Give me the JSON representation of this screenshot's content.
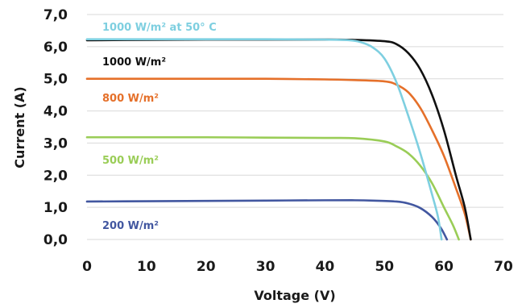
{
  "chart_data": {
    "type": "line",
    "title": "",
    "xlabel": "Voltage (V)",
    "ylabel": "Current (A)",
    "xlim": [
      0,
      70
    ],
    "ylim": [
      0,
      7
    ],
    "xticks": [
      "0",
      "10",
      "20",
      "30",
      "40",
      "50",
      "60",
      "70"
    ],
    "yticks": [
      "0,0",
      "1,0",
      "2,0",
      "3,0",
      "4,0",
      "5,0",
      "6,0",
      "7,0"
    ],
    "grid": "horizontal",
    "legend": "inline-labels",
    "series": [
      {
        "name": "1000 W/m² at 50° C",
        "color": "#7ecfe0",
        "x": [
          0,
          10,
          20,
          30,
          40,
          44,
          46,
          48,
          50,
          52,
          54,
          56,
          58,
          59,
          59.6
        ],
        "y": [
          6.23,
          6.23,
          6.23,
          6.23,
          6.22,
          6.2,
          6.14,
          5.98,
          5.63,
          4.9,
          3.85,
          2.7,
          1.4,
          0.7,
          0
        ]
      },
      {
        "name": "1000 W/m²",
        "color": "#111111",
        "x": [
          0,
          10,
          20,
          30,
          40,
          45,
          50,
          52,
          54,
          56,
          58,
          60,
          62,
          63.5,
          64.5
        ],
        "y": [
          6.2,
          6.21,
          6.22,
          6.22,
          6.22,
          6.21,
          6.17,
          6.08,
          5.8,
          5.3,
          4.5,
          3.4,
          2.0,
          1.0,
          0
        ]
      },
      {
        "name": "800 W/m²",
        "color": "#e5702a",
        "x": [
          0,
          10,
          20,
          30,
          40,
          45,
          50,
          52,
          54,
          56,
          58,
          60,
          62,
          63.5,
          64.5
        ],
        "y": [
          5.0,
          5.0,
          5.0,
          5.0,
          4.98,
          4.96,
          4.92,
          4.82,
          4.58,
          4.1,
          3.4,
          2.6,
          1.6,
          0.8,
          0
        ]
      },
      {
        "name": "500 W/m²",
        "color": "#9acd57",
        "x": [
          0,
          10,
          20,
          30,
          40,
          45,
          50,
          52,
          54,
          56,
          58,
          60,
          61.5,
          62.5
        ],
        "y": [
          3.18,
          3.18,
          3.18,
          3.17,
          3.16,
          3.15,
          3.05,
          2.9,
          2.68,
          2.3,
          1.75,
          1.0,
          0.45,
          0
        ]
      },
      {
        "name": "200 W/m²",
        "color": "#4257a0",
        "x": [
          0,
          10,
          20,
          30,
          40,
          45,
          48,
          52,
          54,
          56,
          58,
          59.5,
          60.5
        ],
        "y": [
          1.18,
          1.19,
          1.2,
          1.21,
          1.22,
          1.22,
          1.21,
          1.18,
          1.12,
          0.98,
          0.7,
          0.35,
          0
        ]
      }
    ]
  }
}
